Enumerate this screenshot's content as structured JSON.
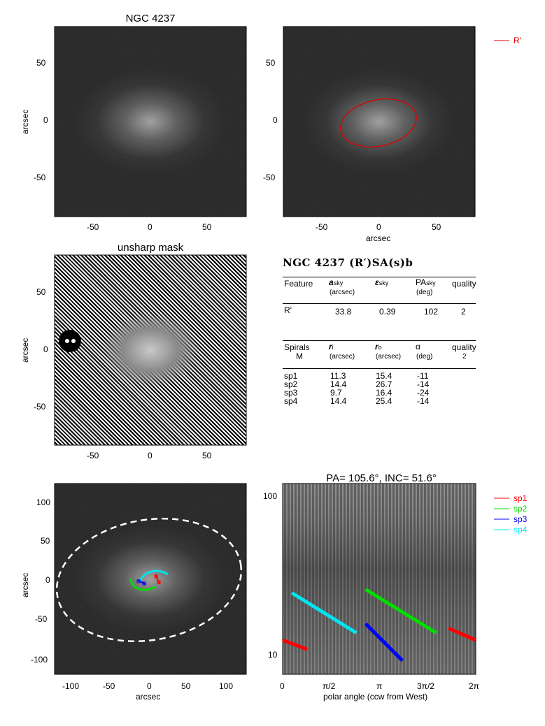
{
  "panel1": {
    "title": "NGC 4237",
    "ylabel": "arcsec",
    "yticks": [
      "50",
      "0",
      "-50"
    ],
    "xticks": [
      "-50",
      "0",
      "50"
    ]
  },
  "panel2": {
    "xlabel": "arcsec",
    "yticks": [
      "50",
      "0",
      "-50"
    ],
    "xticks": [
      "-50",
      "0",
      "50"
    ],
    "legend": [
      {
        "label": "R'",
        "color": "#dd0000"
      }
    ]
  },
  "panel3": {
    "title": "unsharp mask",
    "ylabel": "arcsec",
    "yticks": [
      "50",
      "0",
      "-50"
    ],
    "xticks": [
      "-50",
      "0",
      "50"
    ]
  },
  "table": {
    "title": "NGC 4237  (R′)SA(s)b",
    "header1": {
      "feature": "Feature",
      "a": "a",
      "a_sub": "sky",
      "a_unit": "(arcsec)",
      "e": "ε",
      "e_sub": "sky",
      "pa": "PA",
      "pa_sub": "sky",
      "pa_unit": "(deg)",
      "quality": "quality"
    },
    "row1": {
      "feature": "R'",
      "a": "33.8",
      "e": "0.39",
      "pa": "102",
      "quality": "2"
    },
    "header2": {
      "spirals": "Spirals",
      "m": "M",
      "ri": "r",
      "ri_sub": "i",
      "ri_unit": "(arcsec)",
      "ro": "r",
      "ro_sub": "o",
      "ro_unit": "(arcsec)",
      "alpha": "α",
      "alpha_unit": "(deg)",
      "quality": "quality",
      "quality_val": "2"
    },
    "spirals": [
      {
        "name": "sp1",
        "ri": "11.3",
        "ro": "15.4",
        "alpha": "-11"
      },
      {
        "name": "sp2",
        "ri": "14.4",
        "ro": "26.7",
        "alpha": "-14"
      },
      {
        "name": "sp3",
        "ri": "9.7",
        "ro": "16.4",
        "alpha": "-24"
      },
      {
        "name": "sp4",
        "ri": "14.4",
        "ro": "25.4",
        "alpha": "-14"
      }
    ]
  },
  "panel5": {
    "ylabel": "arcsec",
    "xlabel": "arcsec",
    "yticks": [
      "100",
      "50",
      "0",
      "-50",
      "-100"
    ],
    "xticks": [
      "-100",
      "-50",
      "0",
      "50",
      "100"
    ]
  },
  "panel6": {
    "title": "PA= 105.6°, INC=  51.6°",
    "xlabel": "polar angle (ccw from West)",
    "yticks": [
      "100",
      "10"
    ],
    "xticks": [
      "0",
      "π/2",
      "π",
      "3π/2",
      "2π"
    ],
    "legend": [
      {
        "label": "sp1",
        "color": "#ff0000"
      },
      {
        "label": "sp2",
        "color": "#00dd00"
      },
      {
        "label": "sp3",
        "color": "#0000ff"
      },
      {
        "label": "sp4",
        "color": "#00e5ee"
      }
    ]
  },
  "chart_data": [
    {
      "type": "scatter",
      "title": "PA= 105.6°, INC=  51.6°",
      "xlabel": "polar angle (ccw from West)",
      "xlim": [
        0,
        6.2832
      ],
      "ylim": [
        8,
        120
      ],
      "ylog": true,
      "series": [
        {
          "name": "sp1",
          "x": [
            0.0,
            0.8,
            5.4,
            6.28
          ],
          "y": [
            13.0,
            11.4,
            15.4,
            13.0
          ]
        },
        {
          "name": "sp2",
          "x": [
            2.7,
            5.0
          ],
          "y": [
            26.7,
            14.4
          ]
        },
        {
          "name": "sp3",
          "x": [
            2.7,
            3.9
          ],
          "y": [
            16.4,
            9.7
          ]
        },
        {
          "name": "sp4",
          "x": [
            0.3,
            2.4
          ],
          "y": [
            25.4,
            14.4
          ]
        }
      ]
    }
  ]
}
